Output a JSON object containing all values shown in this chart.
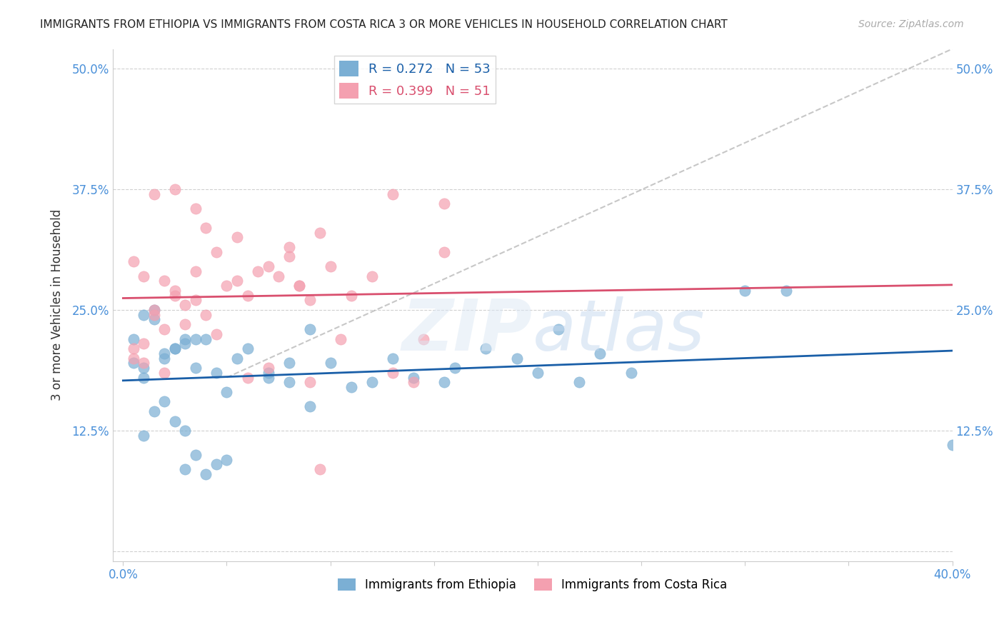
{
  "title": "IMMIGRANTS FROM ETHIOPIA VS IMMIGRANTS FROM COSTA RICA 3 OR MORE VEHICLES IN HOUSEHOLD CORRELATION CHART",
  "source": "Source: ZipAtlas.com",
  "xlabel": "",
  "ylabel": "3 or more Vehicles in Household",
  "xlim": [
    0.0,
    0.4
  ],
  "ylim": [
    -0.01,
    0.52
  ],
  "xticks": [
    0.0,
    0.05,
    0.1,
    0.15,
    0.2,
    0.25,
    0.3,
    0.35,
    0.4
  ],
  "xticklabels": [
    "0.0%",
    "",
    "",
    "",
    "",
    "",
    "",
    "",
    "40.0%"
  ],
  "yticks": [
    0.0,
    0.125,
    0.25,
    0.375,
    0.5
  ],
  "yticklabels": [
    "",
    "12.5%",
    "25.0%",
    "37.5%",
    "50.0%"
  ],
  "ethiopia_color": "#7bafd4",
  "costa_rica_color": "#f4a0b0",
  "ethiopia_line_color": "#1a5fa8",
  "costa_rica_line_color": "#d94f6e",
  "dashed_line_color": "#b0b0b0",
  "R_ethiopia": 0.272,
  "N_ethiopia": 53,
  "R_costa_rica": 0.399,
  "N_costa_rica": 51,
  "watermark": "ZIPatlas",
  "background_color": "#ffffff",
  "grid_color": "#d0d0d0",
  "axis_color": "#4a90d9",
  "ethiopia_x": [
    0.02,
    0.01,
    0.03,
    0.015,
    0.025,
    0.01,
    0.03,
    0.005,
    0.02,
    0.04,
    0.035,
    0.01,
    0.045,
    0.05,
    0.03,
    0.04,
    0.06,
    0.035,
    0.07,
    0.08,
    0.02,
    0.015,
    0.025,
    0.03,
    0.055,
    0.045,
    0.08,
    0.09,
    0.05,
    0.07,
    0.1,
    0.12,
    0.09,
    0.11,
    0.13,
    0.155,
    0.14,
    0.16,
    0.175,
    0.19,
    0.2,
    0.22,
    0.21,
    0.23,
    0.245,
    0.005,
    0.015,
    0.01,
    0.025,
    0.035,
    0.3,
    0.32,
    0.4
  ],
  "ethiopia_y": [
    0.2,
    0.18,
    0.22,
    0.24,
    0.21,
    0.19,
    0.215,
    0.195,
    0.205,
    0.22,
    0.1,
    0.12,
    0.09,
    0.095,
    0.085,
    0.08,
    0.21,
    0.19,
    0.185,
    0.175,
    0.155,
    0.145,
    0.135,
    0.125,
    0.2,
    0.185,
    0.195,
    0.23,
    0.165,
    0.18,
    0.195,
    0.175,
    0.15,
    0.17,
    0.2,
    0.175,
    0.18,
    0.19,
    0.21,
    0.2,
    0.185,
    0.175,
    0.23,
    0.205,
    0.185,
    0.22,
    0.25,
    0.245,
    0.21,
    0.22,
    0.27,
    0.27,
    0.11
  ],
  "costa_rica_x": [
    0.005,
    0.01,
    0.015,
    0.02,
    0.005,
    0.01,
    0.025,
    0.015,
    0.02,
    0.03,
    0.025,
    0.035,
    0.04,
    0.03,
    0.045,
    0.035,
    0.05,
    0.06,
    0.055,
    0.065,
    0.045,
    0.07,
    0.08,
    0.075,
    0.085,
    0.09,
    0.08,
    0.095,
    0.1,
    0.085,
    0.11,
    0.12,
    0.105,
    0.13,
    0.14,
    0.13,
    0.155,
    0.015,
    0.025,
    0.035,
    0.04,
    0.055,
    0.06,
    0.07,
    0.09,
    0.095,
    0.145,
    0.005,
    0.01,
    0.02,
    0.155
  ],
  "costa_rica_y": [
    0.2,
    0.215,
    0.25,
    0.28,
    0.3,
    0.285,
    0.265,
    0.245,
    0.23,
    0.255,
    0.27,
    0.26,
    0.245,
    0.235,
    0.225,
    0.29,
    0.275,
    0.265,
    0.28,
    0.29,
    0.31,
    0.295,
    0.305,
    0.285,
    0.275,
    0.26,
    0.315,
    0.33,
    0.295,
    0.275,
    0.265,
    0.285,
    0.22,
    0.185,
    0.175,
    0.37,
    0.36,
    0.37,
    0.375,
    0.355,
    0.335,
    0.325,
    0.18,
    0.19,
    0.175,
    0.085,
    0.22,
    0.21,
    0.195,
    0.185,
    0.31
  ]
}
